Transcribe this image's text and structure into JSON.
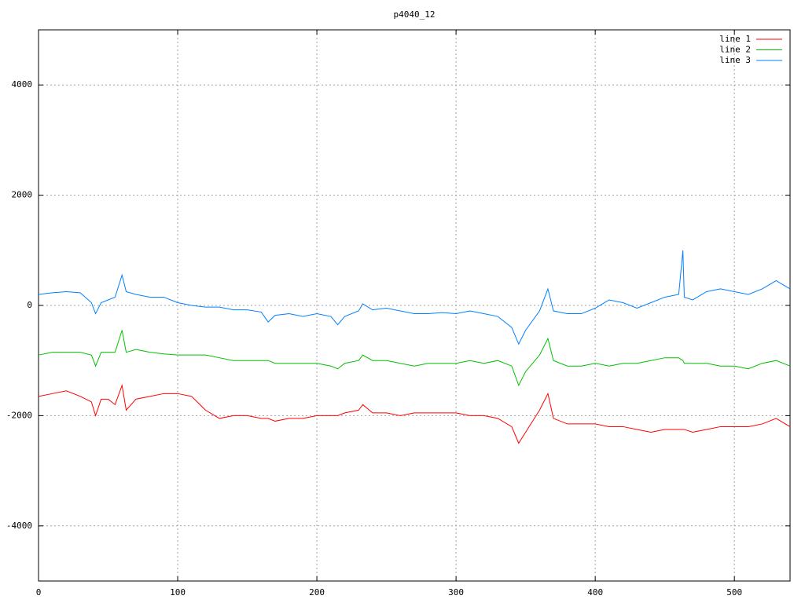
{
  "chart_data": {
    "type": "line",
    "title": "p4040_12",
    "x": [
      0,
      10,
      20,
      30,
      38,
      41,
      45,
      50,
      55,
      60,
      63,
      70,
      80,
      90,
      100,
      110,
      120,
      130,
      140,
      150,
      160,
      165,
      170,
      180,
      190,
      200,
      210,
      215,
      220,
      230,
      233,
      240,
      250,
      260,
      270,
      280,
      290,
      300,
      310,
      320,
      330,
      340,
      345,
      350,
      360,
      366,
      370,
      380,
      390,
      400,
      410,
      420,
      430,
      440,
      450,
      460,
      463,
      464,
      470,
      480,
      490,
      500,
      510,
      520,
      530,
      540
    ],
    "series": [
      {
        "name": "line 1",
        "color": "#ff0000",
        "values": [
          -1650,
          -1600,
          -1550,
          -1650,
          -1750,
          -2000,
          -1700,
          -1700,
          -1800,
          -1450,
          -1900,
          -1700,
          -1650,
          -1600,
          -1600,
          -1650,
          -1900,
          -2050,
          -2000,
          -2000,
          -2050,
          -2050,
          -2100,
          -2050,
          -2050,
          -2000,
          -2000,
          -2000,
          -1950,
          -1900,
          -1800,
          -1950,
          -1950,
          -2000,
          -1950,
          -1950,
          -1950,
          -1950,
          -2000,
          -2000,
          -2050,
          -2200,
          -2500,
          -2300,
          -1900,
          -1600,
          -2050,
          -2150,
          -2150,
          -2150,
          -2200,
          -2200,
          -2250,
          -2300,
          -2250,
          -2250,
          -2250,
          -2250,
          -2300,
          -2250,
          -2200,
          -2200,
          -2200,
          -2150,
          -2050,
          -2200
        ]
      },
      {
        "name": "line 2",
        "color": "#00c000",
        "values": [
          -900,
          -850,
          -850,
          -850,
          -900,
          -1100,
          -850,
          -850,
          -850,
          -450,
          -850,
          -800,
          -850,
          -880,
          -900,
          -900,
          -900,
          -950,
          -1000,
          -1000,
          -1000,
          -1000,
          -1050,
          -1050,
          -1050,
          -1050,
          -1100,
          -1150,
          -1050,
          -1000,
          -900,
          -1000,
          -1000,
          -1050,
          -1100,
          -1050,
          -1050,
          -1050,
          -1000,
          -1050,
          -1000,
          -1100,
          -1450,
          -1200,
          -900,
          -600,
          -1000,
          -1100,
          -1100,
          -1050,
          -1100,
          -1050,
          -1050,
          -1000,
          -950,
          -950,
          -1000,
          -1050,
          -1050,
          -1050,
          -1100,
          -1100,
          -1150,
          -1050,
          -1000,
          -1100
        ]
      },
      {
        "name": "line 3",
        "color": "#0080ff",
        "values": [
          200,
          230,
          250,
          230,
          50,
          -150,
          50,
          100,
          150,
          550,
          250,
          200,
          150,
          150,
          50,
          0,
          -30,
          -30,
          -80,
          -80,
          -120,
          -300,
          -180,
          -150,
          -200,
          -150,
          -200,
          -350,
          -200,
          -100,
          30,
          -80,
          -50,
          -100,
          -150,
          -150,
          -130,
          -150,
          -100,
          -150,
          -200,
          -400,
          -700,
          -450,
          -100,
          300,
          -100,
          -150,
          -150,
          -50,
          100,
          50,
          -50,
          50,
          150,
          200,
          1000,
          150,
          100,
          250,
          300,
          250,
          200,
          300,
          450,
          300
        ]
      }
    ],
    "xlim": [
      0,
      540
    ],
    "ylim": [
      -5000,
      5000
    ],
    "xticks": [
      0,
      100,
      200,
      300,
      400,
      500
    ],
    "yticks": [
      -4000,
      -2000,
      0,
      2000,
      4000
    ],
    "grid": true,
    "legend": "top-right"
  }
}
